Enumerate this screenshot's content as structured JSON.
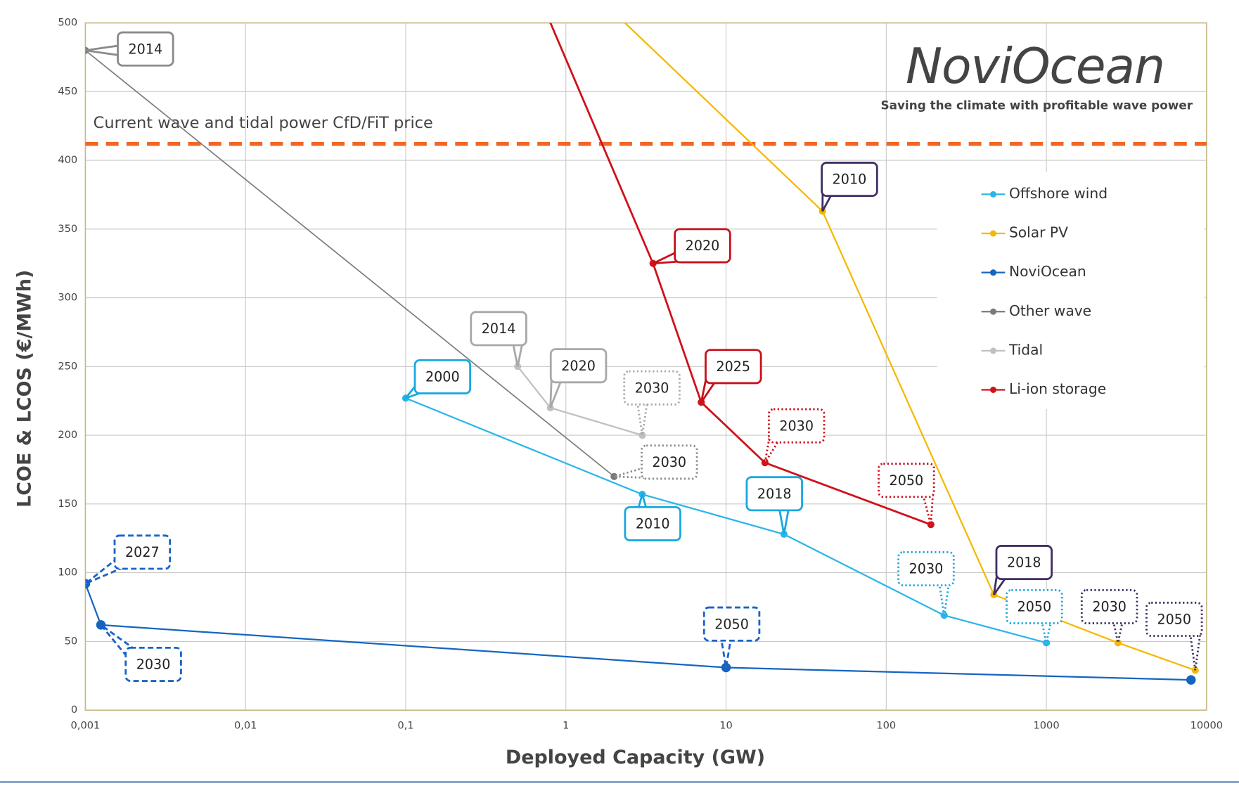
{
  "chart_data": {
    "type": "line",
    "xlabel": "Deployed Capacity (GW)",
    "ylabel": "LCOE & LCOS (€/MWh)",
    "xscale": "log",
    "xlim": [
      0.001,
      10000
    ],
    "xticks": [
      {
        "value": 0.001,
        "label": "0,001"
      },
      {
        "value": 0.01,
        "label": "0,01"
      },
      {
        "value": 0.1,
        "label": "0,1"
      },
      1,
      10,
      100,
      1000,
      10000
    ],
    "ylim": [
      0,
      500
    ],
    "yticks": [
      0,
      50,
      100,
      150,
      200,
      250,
      300,
      350,
      400,
      450,
      500
    ],
    "grid": true,
    "legend": "right",
    "logo": {
      "name": "NoviOcean",
      "tagline": "Saving the climate with profitable wave power"
    },
    "reference_line": {
      "value": 412,
      "label": "Current wave and tidal power CfD/FiT price",
      "color": "#f26522"
    },
    "series": [
      {
        "name": "Offshore wind",
        "color": "#29b6e8",
        "label_color": "#1aa8e0",
        "x": [
          0.1,
          3,
          23,
          230,
          1000
        ],
        "values": [
          227,
          157,
          128,
          69,
          49
        ],
        "labels": [
          "2000",
          "2010",
          "2018",
          "2030",
          "2050"
        ],
        "label_styles": [
          "solid",
          "solid",
          "solid",
          "dotted",
          "dotted"
        ]
      },
      {
        "name": "Solar PV",
        "color": "#f5b800",
        "label_color": "#3f2f63",
        "x": [
          1,
          40,
          470,
          2800,
          8500
        ],
        "values": [
          541,
          363,
          84,
          49,
          29
        ],
        "labels": [
          null,
          "2010",
          "2018",
          "2030",
          "2050"
        ],
        "label_styles": [
          null,
          "solid",
          "solid",
          "dotted",
          "dotted"
        ]
      },
      {
        "name": "NoviOcean",
        "color": "#1565c0",
        "label_color": "#1a63c4",
        "x": [
          0.001,
          0.00125,
          10,
          8000
        ],
        "values": [
          92,
          62,
          31,
          22
        ],
        "labels": [
          "2027",
          "2030",
          "2050",
          null
        ],
        "label_styles": [
          "dashed",
          "dashed",
          "dashed",
          null
        ]
      },
      {
        "name": "Other wave",
        "color": "#7a7a7a",
        "label_color": "#8a8a8a",
        "x": [
          0.001,
          2
        ],
        "values": [
          480,
          170
        ],
        "labels": [
          "2014",
          "2030"
        ],
        "label_styles": [
          "solid",
          "dotted"
        ]
      },
      {
        "name": "Tidal",
        "color": "#c0c0c0",
        "label_color": "#a8a8a8",
        "x": [
          0.5,
          0.8,
          3
        ],
        "values": [
          250,
          220,
          200
        ],
        "labels": [
          "2014",
          "2020",
          "2030"
        ],
        "label_styles": [
          "solid",
          "solid",
          "dotted"
        ]
      },
      {
        "name": "Li-ion storage",
        "color": "#d0121b",
        "label_color": "#c8101a",
        "x": [
          0.7,
          3.5,
          7,
          17.5,
          190
        ],
        "values": [
          516,
          325,
          224,
          180,
          135
        ],
        "labels": [
          null,
          "2020",
          "2025",
          "2030",
          "2050"
        ],
        "label_styles": [
          null,
          "solid",
          "solid",
          "dotted",
          "dotted"
        ]
      }
    ]
  }
}
